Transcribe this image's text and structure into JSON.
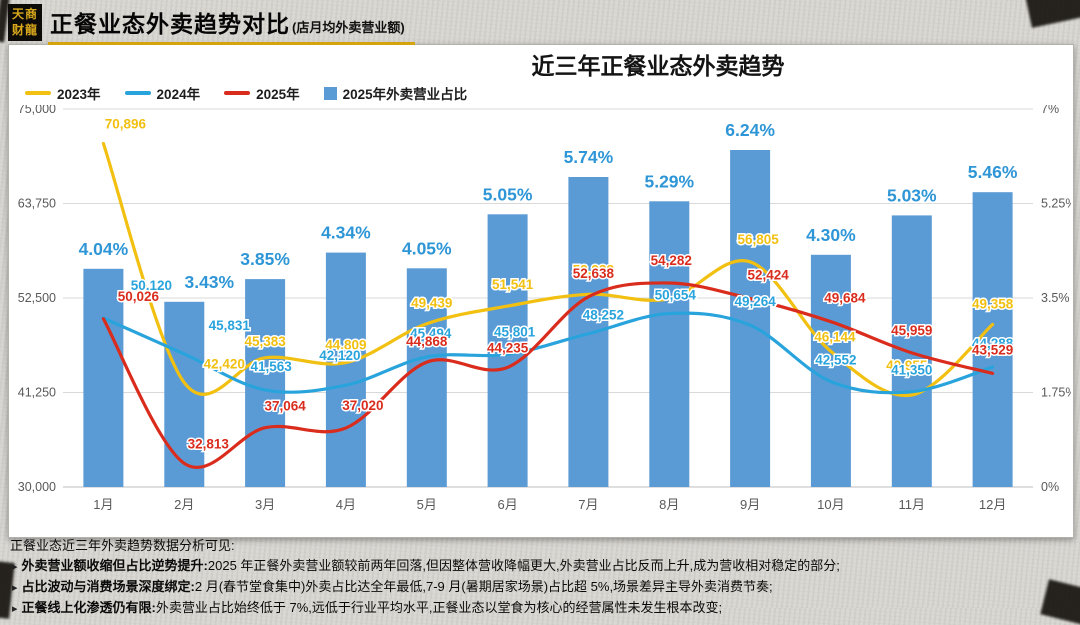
{
  "header": {
    "logo_line1": "天商",
    "logo_line2": "财龍",
    "title": "正餐业态外卖趋势对比",
    "subtitle": "(店月均外卖营业额)"
  },
  "chart_data": {
    "type": "bar+line combo",
    "title": "近三年正餐业态外卖趋势",
    "categories": [
      "1月",
      "2月",
      "3月",
      "4月",
      "5月",
      "6月",
      "7月",
      "8月",
      "9月",
      "10月",
      "11月",
      "12月"
    ],
    "left_axis": {
      "min": 30000,
      "max": 75000,
      "ticks": [
        "75,000",
        "63,750",
        "52,500",
        "41,250",
        "30,000"
      ]
    },
    "right_axis": {
      "min": 0,
      "max": 7,
      "ticks": [
        "7%",
        "5.25%",
        "3.5%",
        "1.75%",
        "0%"
      ]
    },
    "grid": "horizontal",
    "legend_position": "top-left",
    "bar_series": {
      "name": "2025年外卖营业占比",
      "color": "#5B9BD5",
      "label_color": "#2E96D6",
      "values": [
        4.04,
        3.43,
        3.85,
        4.34,
        4.05,
        5.05,
        5.74,
        5.29,
        6.24,
        4.3,
        5.03,
        5.46
      ],
      "labels": [
        "4.04%",
        "3.43%",
        "3.85%",
        "4.34%",
        "4.05%",
        "5.05%",
        "5.74%",
        "5.29%",
        "6.24%",
        "4.30%",
        "5.03%",
        "5.46%"
      ]
    },
    "line_series": [
      {
        "name": "2023年",
        "color": "#F2C011",
        "values": [
          70896,
          42420,
          45383,
          44809,
          49439,
          51541,
          52938,
          52400,
          56805,
          46144,
          40955,
          49358
        ],
        "labels": [
          "70,896",
          "42,420",
          "45,383",
          "44,809",
          "49,439",
          "51,541",
          "52,938",
          "",
          "56,805",
          "46,144",
          "40,955",
          "49,358"
        ]
      },
      {
        "name": "2024年",
        "color": "#29A3DC",
        "values": [
          50120,
          45831,
          41563,
          42120,
          45494,
          45801,
          48252,
          50654,
          49264,
          42552,
          41350,
          44288
        ],
        "labels": [
          "50,120",
          "45,831",
          "41,563",
          "42,120",
          "45,494",
          "45,801",
          "48,252",
          "50,654",
          "49,264",
          "42,552",
          "41,350",
          "44,288"
        ]
      },
      {
        "name": "2025年",
        "color": "#DA2C1D",
        "values": [
          50026,
          32813,
          37064,
          37020,
          44868,
          44235,
          52638,
          54282,
          52424,
          49684,
          45959,
          43529
        ],
        "labels": [
          "50,026",
          "32,813",
          "37,064",
          "37,020",
          "44,868",
          "44,235",
          "52,638",
          "54,282",
          "52,424",
          "49,684",
          "45,959",
          "43,529"
        ]
      }
    ]
  },
  "analysis": {
    "intro": "正餐业态近三年外卖趋势数据分析可见:",
    "bullets": [
      {
        "bold": "外卖营业额收缩但占比逆势提升:",
        "text": "2025 年正餐外卖营业额较前两年回落,但因整体营收降幅更大,外卖营业占比反而上升,成为营收相对稳定的部分;"
      },
      {
        "bold": "占比波动与消费场景深度绑定:",
        "text": "2 月(春节堂食集中)外卖占比达全年最低,7-9 月(暑期居家场景)占比超 5%,场景差异主导外卖消费节奏;"
      },
      {
        "bold": "正餐线上化渗透仍有限:",
        "text": "外卖营业占比始终低于 7%,远低于行业平均水平,正餐业态以堂食为核心的经营属性未发生根本改变;"
      }
    ]
  }
}
